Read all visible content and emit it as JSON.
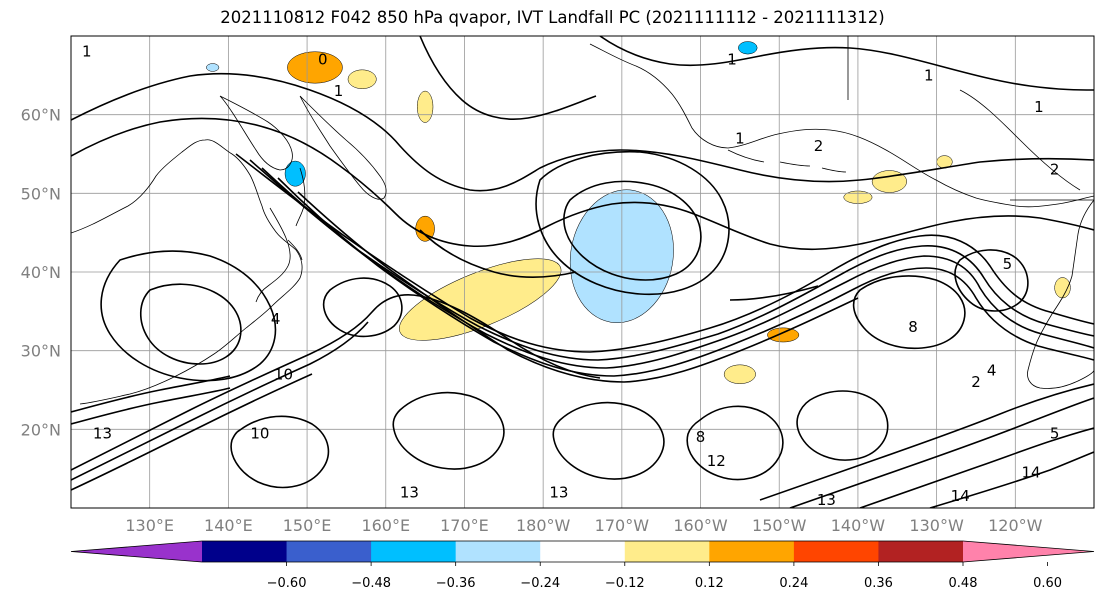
{
  "title": "2021110812 F042 850 hPa qvapor, IVT Landfall PC (2021111112 - 2021111312)",
  "chart_data": {
    "type": "contour-map",
    "map": {
      "lon_range": [
        120,
        250
      ],
      "lat_range": [
        10,
        70
      ],
      "lon_ticks": [
        {
          "lon": 130,
          "label": "130°E"
        },
        {
          "lon": 140,
          "label": "140°E"
        },
        {
          "lon": 150,
          "label": "150°E"
        },
        {
          "lon": 160,
          "label": "160°E"
        },
        {
          "lon": 170,
          "label": "170°E"
        },
        {
          "lon": 180,
          "label": "180°W"
        },
        {
          "lon": 190,
          "label": "170°W"
        },
        {
          "lon": 200,
          "label": "160°W"
        },
        {
          "lon": 210,
          "label": "150°W"
        },
        {
          "lon": 220,
          "label": "140°W"
        },
        {
          "lon": 230,
          "label": "130°W"
        },
        {
          "lon": 240,
          "label": "120°W"
        }
      ],
      "lat_ticks": [
        {
          "lat": 20,
          "label": "20°N"
        },
        {
          "lat": 30,
          "label": "30°N"
        },
        {
          "lat": 40,
          "label": "40°N"
        },
        {
          "lat": 50,
          "label": "50°N"
        },
        {
          "lat": 60,
          "label": "60°N"
        }
      ],
      "grid": true
    },
    "colorbar": {
      "orientation": "horizontal",
      "extend": "both",
      "bins": [
        {
          "color": "#9932cc"
        },
        {
          "color": "#00008b"
        },
        {
          "color": "#3a5fcd"
        },
        {
          "color": "#00bfff"
        },
        {
          "color": "#b0e2ff"
        },
        {
          "color": "#ffffff"
        },
        {
          "color": "#ffec8b"
        },
        {
          "color": "#ffa500"
        },
        {
          "color": "#ff4500"
        },
        {
          "color": "#b22222"
        },
        {
          "color": "#ff82ab"
        }
      ],
      "tick_labels": [
        "−0.60",
        "−0.48",
        "−0.36",
        "−0.24",
        "−0.12",
        "0.12",
        "0.24",
        "0.36",
        "0.48",
        "0.60"
      ]
    },
    "contour_labels": [
      {
        "text": "1",
        "lon": 122,
        "lat": 68
      },
      {
        "text": "0",
        "lon": 152,
        "lat": 67
      },
      {
        "text": "1",
        "lon": 154,
        "lat": 63
      },
      {
        "text": "1",
        "lon": 204,
        "lat": 67
      },
      {
        "text": "1",
        "lon": 243,
        "lat": 61
      },
      {
        "text": "1",
        "lon": 229,
        "lat": 65
      },
      {
        "text": "1",
        "lon": 205,
        "lat": 57
      },
      {
        "text": "2",
        "lon": 215,
        "lat": 56
      },
      {
        "text": "2",
        "lon": 245,
        "lat": 53
      },
      {
        "text": "4",
        "lon": 146,
        "lat": 34
      },
      {
        "text": "10",
        "lon": 147,
        "lat": 27
      },
      {
        "text": "13",
        "lon": 124,
        "lat": 19.5
      },
      {
        "text": "13",
        "lon": 163,
        "lat": 12
      },
      {
        "text": "13",
        "lon": 182,
        "lat": 12
      },
      {
        "text": "13",
        "lon": 216,
        "lat": 11
      },
      {
        "text": "14",
        "lon": 233,
        "lat": 11.5
      },
      {
        "text": "14",
        "lon": 242,
        "lat": 14.5
      },
      {
        "text": "2",
        "lon": 235,
        "lat": 26
      },
      {
        "text": "4",
        "lon": 237,
        "lat": 27.5
      },
      {
        "text": "5",
        "lon": 245,
        "lat": 19.5
      },
      {
        "text": "5",
        "lon": 239,
        "lat": 41
      },
      {
        "text": "8",
        "lon": 227,
        "lat": 33
      },
      {
        "text": "8",
        "lon": 200,
        "lat": 19
      },
      {
        "text": "12",
        "lon": 202,
        "lat": 16
      },
      {
        "text": "10",
        "lon": 144,
        "lat": 19.5
      }
    ],
    "shaded_features": [
      {
        "sign": "negative",
        "level": "strong",
        "lon": 191.5,
        "lat": 41,
        "rx": 3.2,
        "ry": 7,
        "rot": 15
      },
      {
        "sign": "negative",
        "level": "weak",
        "lon": 190,
        "lat": 42,
        "rx": 6.5,
        "ry": 8.5,
        "rot": 10
      },
      {
        "sign": "positive",
        "level": "moderate",
        "lon": 171,
        "lat": 36.5,
        "rx": 9,
        "ry": 2.4,
        "rot": -22
      },
      {
        "sign": "positive",
        "level": "weak",
        "lon": 172,
        "lat": 36.5,
        "rx": 11,
        "ry": 3.4,
        "rot": -22
      },
      {
        "sign": "positive",
        "level": "moderate",
        "lon": 151,
        "lat": 66,
        "rx": 3.5,
        "ry": 2,
        "rot": 0
      },
      {
        "sign": "positive",
        "level": "weak",
        "lon": 157,
        "lat": 64.5,
        "rx": 1.8,
        "ry": 1.2,
        "rot": 0
      },
      {
        "sign": "positive",
        "level": "moderate",
        "lon": 165,
        "lat": 45.5,
        "rx": 1.2,
        "ry": 1.6,
        "rot": 0
      },
      {
        "sign": "negative",
        "level": "moderate",
        "lon": 148.5,
        "lat": 52.5,
        "rx": 1.3,
        "ry": 1.6,
        "rot": 0
      },
      {
        "sign": "positive",
        "level": "weak",
        "lon": 224,
        "lat": 51.5,
        "rx": 2.2,
        "ry": 1.4,
        "rot": 0
      },
      {
        "sign": "positive",
        "level": "weak",
        "lon": 220,
        "lat": 49.5,
        "rx": 1.8,
        "ry": 0.8,
        "rot": 0
      },
      {
        "sign": "positive",
        "level": "weak",
        "lon": 205,
        "lat": 27,
        "rx": 2.0,
        "ry": 1.2,
        "rot": 0
      },
      {
        "sign": "positive",
        "level": "moderate",
        "lon": 210.5,
        "lat": 32,
        "rx": 2.0,
        "ry": 0.9,
        "rot": 0
      },
      {
        "sign": "negative",
        "level": "moderate",
        "lon": 206,
        "lat": 68.5,
        "rx": 1.2,
        "ry": 0.8,
        "rot": 0
      },
      {
        "sign": "negative",
        "level": "weak",
        "lon": 138,
        "lat": 66,
        "rx": 0.8,
        "ry": 0.5,
        "rot": 0
      },
      {
        "sign": "positive",
        "level": "weak",
        "lon": 165,
        "lat": 61,
        "rx": 1.0,
        "ry": 2.0,
        "rot": 0
      },
      {
        "sign": "positive",
        "level": "weak",
        "lon": 246,
        "lat": 38,
        "rx": 1.0,
        "ry": 1.3,
        "rot": 0
      },
      {
        "sign": "positive",
        "level": "weak",
        "lon": 231,
        "lat": 54,
        "rx": 1.0,
        "ry": 0.8,
        "rot": 0
      }
    ]
  }
}
